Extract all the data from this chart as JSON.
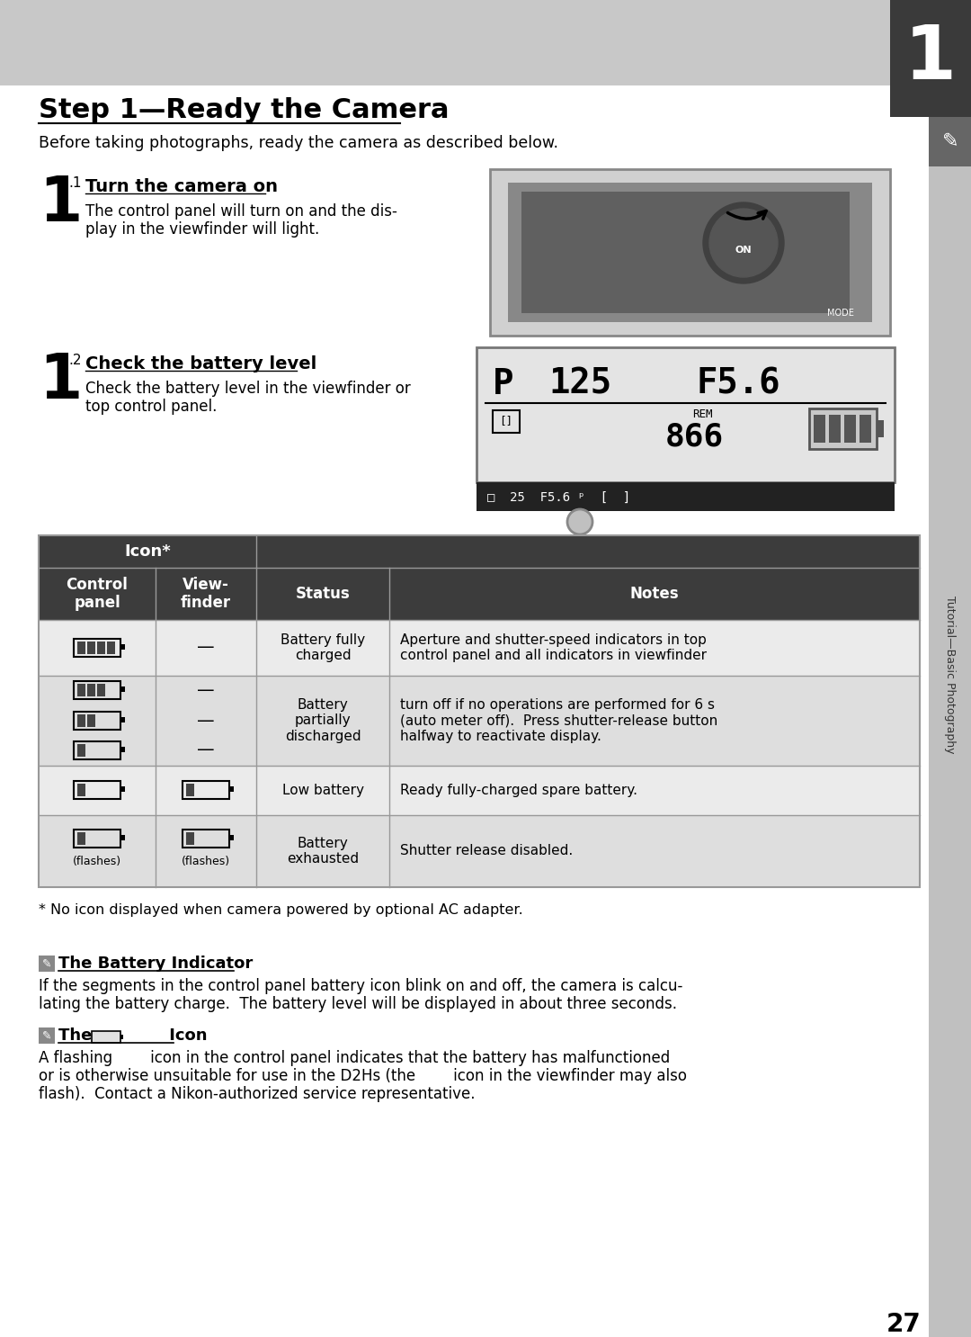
{
  "page_bg": "#ffffff",
  "header_bg": "#c8c8c8",
  "header_number": "1",
  "header_number_bg": "#3a3a3a",
  "sidebar_bg": "#c0c0c0",
  "sidebar_text": "Tutorial—Basic Photography",
  "title": "Step 1—Ready the Camera",
  "subtitle": "Before taking photographs, ready the camera as described below.",
  "step1_sub": ".1",
  "step1_heading": "Turn the camera on",
  "step1_body1": "The control panel will turn on and the dis-",
  "step1_body2": "play in the viewfinder will light.",
  "step2_sub": ".2",
  "step2_heading": "Check the battery level",
  "step2_body1": "Check the battery level in the viewfinder or",
  "step2_body2": "top control panel.",
  "footnote": "* No icon displayed when camera powered by optional AC adapter.",
  "battery_indicator_heading": "The Battery Indicator",
  "battery_indicator_body1": "If the segments in the control panel battery icon blink on and off, the camera is calcu-",
  "battery_indicator_body2": "lating the battery charge.  The battery level will be displayed in about three seconds.",
  "icon_section_body1": "A flashing        icon in the control panel indicates that the battery has malfunctioned",
  "icon_section_body2": "or is otherwise unsuitable for use in the D2Hs (the        icon in the viewfinder may also",
  "icon_section_body3": "flash).  Contact a Nikon-authorized service representative.",
  "table_header_bg": "#3c3c3c",
  "table_header_text": "#ffffff",
  "table_light_bg": "#ebebeb",
  "table_dark_bg": "#dedede",
  "table_border_color": "#999999",
  "row_fully_charged_status": "Battery fully\ncharged",
  "row_fully_charged_notes1": "Aperture and shutter-speed indicators in top",
  "row_fully_charged_notes2": "control panel and all indicators in viewfinder",
  "row_partial_status": "Battery\npartially\ndischarged",
  "row_partial_notes1": "turn off if no operations are performed for 6 s",
  "row_partial_notes2": "(auto meter off).  Press shutter-release button",
  "row_partial_notes3": "halfway to reactivate display.",
  "row_low_status": "Low battery",
  "row_low_notes": "Ready fully-charged spare battery.",
  "row_exhausted_status": "Battery\nexhausted",
  "row_exhausted_notes": "Shutter release disabled.",
  "page_number": "27"
}
